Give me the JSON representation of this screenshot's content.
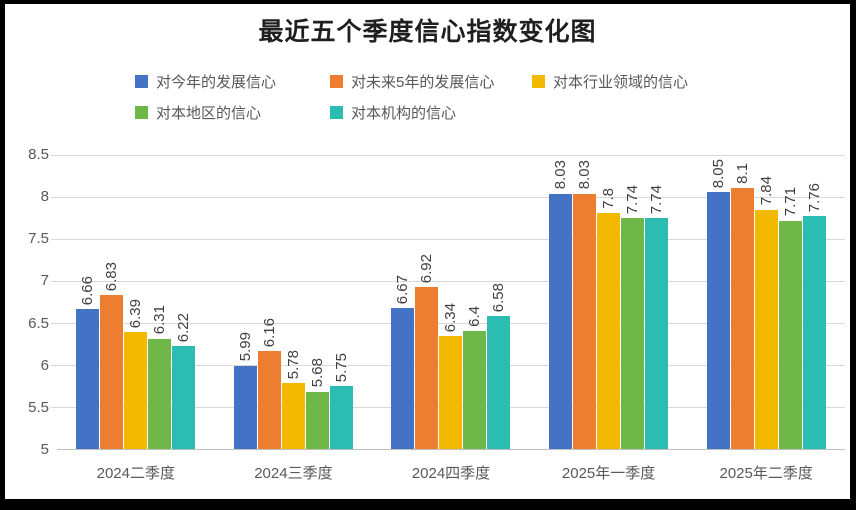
{
  "chart_data": {
    "type": "bar",
    "title": "最近五个季度信心指数变化图",
    "categories": [
      "2024二季度",
      "2024三季度",
      "2024四季度",
      "2025年一季度",
      "2025年二季度"
    ],
    "series": [
      {
        "name": "对今年的发展信心",
        "color": "#4472C4",
        "values": [
          6.66,
          5.99,
          6.67,
          8.03,
          8.05
        ]
      },
      {
        "name": "对未来5年的发展信心",
        "color": "#ED7D31",
        "values": [
          6.83,
          6.16,
          6.92,
          8.03,
          8.1
        ]
      },
      {
        "name": "对本行业领域的信心",
        "color": "#F3B800",
        "values": [
          6.39,
          5.78,
          6.34,
          7.8,
          7.84
        ]
      },
      {
        "name": "对本地区的信心",
        "color": "#70B74A",
        "values": [
          6.31,
          5.68,
          6.4,
          7.74,
          7.71
        ]
      },
      {
        "name": "对本机构的信心",
        "color": "#2CBDB2",
        "values": [
          6.22,
          5.75,
          6.58,
          7.74,
          7.76
        ]
      }
    ],
    "data_labels": [
      "6.66",
      "6.83",
      "6.39",
      "6.31",
      "6.22",
      "5.99",
      "6.16",
      "5.78",
      "5.68",
      "5.75",
      "6.67",
      "6.92",
      "6.34",
      "6.4",
      "6.58",
      "8.03",
      "8.03",
      "7.8",
      "7.74",
      "7.74",
      "8.05",
      "8.1",
      "7.84",
      "7.71",
      "7.76"
    ],
    "y_tick_labels": [
      "8.5",
      "8",
      "7.5",
      "7",
      "6.5",
      "6",
      "5.5",
      "5"
    ],
    "ylim": [
      5,
      8.5
    ],
    "ytick_step": 0.5,
    "grid": true,
    "legend_position": "top",
    "label_rotation": "vertical",
    "colors": {
      "gridline": "#d9d9d9",
      "axis_line": "#bfbfbf",
      "axis_text": "#595959",
      "data_label_text": "#3f3f3f",
      "title_text": "#1f1f1f",
      "frame_border": "#000000"
    }
  }
}
